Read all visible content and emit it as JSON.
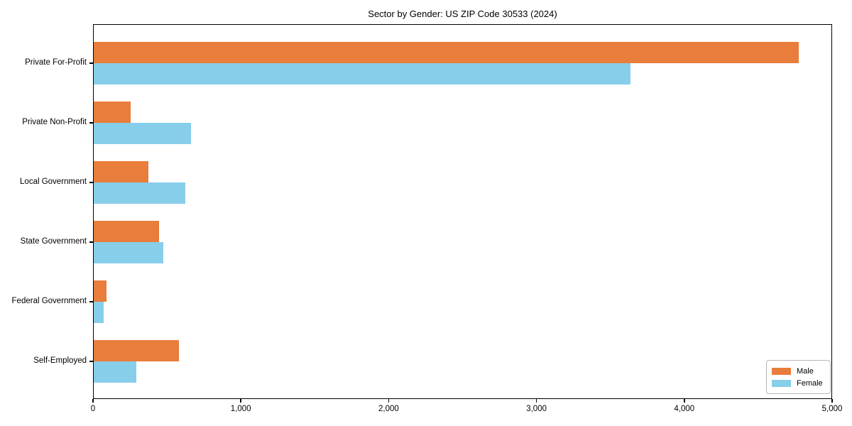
{
  "chart_data": {
    "type": "bar",
    "orientation": "horizontal",
    "title": "Sector by Gender: US ZIP Code 30533 (2024)",
    "categories": [
      "Private For-Profit",
      "Private Non-Profit",
      "Local Government",
      "State Government",
      "Federal Government",
      "Self-Employed"
    ],
    "series": [
      {
        "name": "Male",
        "color": "#E87D3C",
        "values": [
          4770,
          250,
          370,
          440,
          85,
          575
        ]
      },
      {
        "name": "Female",
        "color": "#87CEEB",
        "values": [
          3630,
          660,
          620,
          470,
          65,
          290
        ]
      }
    ],
    "xlabel": "",
    "ylabel": "",
    "xlim": [
      0,
      5000
    ],
    "xticks": [
      0,
      1000,
      2000,
      3000,
      4000,
      5000
    ],
    "xtick_labels": [
      "0",
      "1,000",
      "2,000",
      "3,000",
      "4,000",
      "5,000"
    ],
    "legend_position": "lower right",
    "grid": false,
    "colors": {
      "male": "#E87D3C",
      "female": "#87CEEB",
      "axis": "#000000",
      "background": "#ffffff",
      "legend_border": "#b7b7b7"
    }
  }
}
